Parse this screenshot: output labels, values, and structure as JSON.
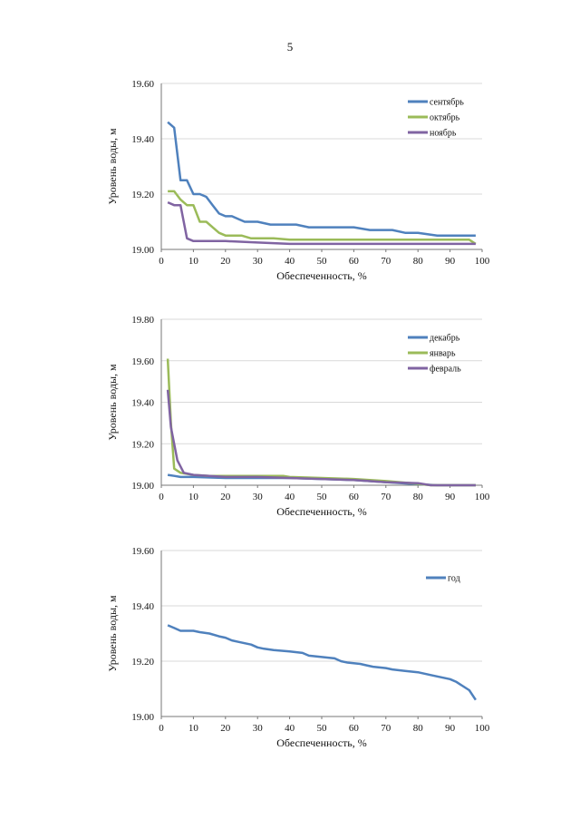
{
  "page": {
    "number": "5"
  },
  "chart_data": [
    {
      "type": "line",
      "title": "",
      "xlabel": "Обеспеченность, %",
      "ylabel": "Уровень воды, м",
      "xlim": [
        0,
        100
      ],
      "ylim": [
        19.0,
        19.6
      ],
      "xticks": [
        "0",
        "10",
        "20",
        "30",
        "40",
        "50",
        "60",
        "70",
        "80",
        "90",
        "100"
      ],
      "yticks": [
        "19.00",
        "19.20",
        "19.40",
        "19.60"
      ],
      "grid": "horizontal",
      "legend": "top-right",
      "series": [
        {
          "name": "сентябрь",
          "color": "#4f81bd",
          "points": [
            [
              2,
              19.46
            ],
            [
              4,
              19.44
            ],
            [
              6,
              19.25
            ],
            [
              8,
              19.25
            ],
            [
              10,
              19.2
            ],
            [
              12,
              19.2
            ],
            [
              14,
              19.19
            ],
            [
              16,
              19.16
            ],
            [
              18,
              19.13
            ],
            [
              20,
              19.12
            ],
            [
              22,
              19.12
            ],
            [
              24,
              19.11
            ],
            [
              26,
              19.1
            ],
            [
              30,
              19.1
            ],
            [
              34,
              19.09
            ],
            [
              38,
              19.09
            ],
            [
              42,
              19.09
            ],
            [
              46,
              19.08
            ],
            [
              55,
              19.08
            ],
            [
              60,
              19.08
            ],
            [
              65,
              19.07
            ],
            [
              72,
              19.07
            ],
            [
              76,
              19.06
            ],
            [
              80,
              19.06
            ],
            [
              86,
              19.05
            ],
            [
              90,
              19.05
            ],
            [
              94,
              19.05
            ],
            [
              98,
              19.05
            ]
          ]
        },
        {
          "name": "октябрь",
          "color": "#9bbb59",
          "points": [
            [
              2,
              19.21
            ],
            [
              4,
              19.21
            ],
            [
              6,
              19.18
            ],
            [
              8,
              19.16
            ],
            [
              10,
              19.16
            ],
            [
              12,
              19.1
            ],
            [
              14,
              19.1
            ],
            [
              16,
              19.08
            ],
            [
              18,
              19.06
            ],
            [
              20,
              19.05
            ],
            [
              25,
              19.05
            ],
            [
              28,
              19.04
            ],
            [
              35,
              19.04
            ],
            [
              40,
              19.035
            ],
            [
              50,
              19.035
            ],
            [
              70,
              19.035
            ],
            [
              90,
              19.035
            ],
            [
              96,
              19.035
            ],
            [
              98,
              19.02
            ]
          ]
        },
        {
          "name": "ноябрь",
          "color": "#8064a2",
          "points": [
            [
              2,
              19.17
            ],
            [
              4,
              19.16
            ],
            [
              6,
              19.16
            ],
            [
              8,
              19.04
            ],
            [
              10,
              19.03
            ],
            [
              20,
              19.03
            ],
            [
              30,
              19.025
            ],
            [
              40,
              19.02
            ],
            [
              60,
              19.02
            ],
            [
              80,
              19.02
            ],
            [
              98,
              19.02
            ]
          ]
        }
      ]
    },
    {
      "type": "line",
      "title": "",
      "xlabel": "Обеспеченность, %",
      "ylabel": "Уровень воды, м",
      "xlim": [
        0,
        100
      ],
      "ylim": [
        19.0,
        19.8
      ],
      "xticks": [
        "0",
        "10",
        "20",
        "30",
        "40",
        "50",
        "60",
        "70",
        "80",
        "90",
        "100"
      ],
      "yticks": [
        "19.00",
        "19.20",
        "19.40",
        "19.60",
        "19.80"
      ],
      "grid": "horizontal",
      "legend": "top-right",
      "series": [
        {
          "name": "декабрь",
          "color": "#4f81bd",
          "points": [
            [
              2,
              19.05
            ],
            [
              4,
              19.045
            ],
            [
              6,
              19.04
            ],
            [
              10,
              19.04
            ],
            [
              20,
              19.035
            ],
            [
              30,
              19.035
            ],
            [
              40,
              19.035
            ],
            [
              50,
              19.03
            ],
            [
              60,
              19.025
            ],
            [
              70,
              19.015
            ],
            [
              80,
              19.005
            ],
            [
              86,
              19.0
            ],
            [
              98,
              19.0
            ]
          ]
        },
        {
          "name": "январь",
          "color": "#9bbb59",
          "points": [
            [
              2,
              19.61
            ],
            [
              3,
              19.3
            ],
            [
              4,
              19.08
            ],
            [
              6,
              19.06
            ],
            [
              10,
              19.05
            ],
            [
              15,
              19.045
            ],
            [
              20,
              19.045
            ],
            [
              30,
              19.045
            ],
            [
              38,
              19.045
            ],
            [
              40,
              19.04
            ],
            [
              50,
              19.035
            ],
            [
              60,
              19.03
            ],
            [
              70,
              19.02
            ],
            [
              78,
              19.01
            ],
            [
              84,
              19.0
            ],
            [
              98,
              19.0
            ]
          ]
        },
        {
          "name": "февраль",
          "color": "#8064a2",
          "points": [
            [
              2,
              19.46
            ],
            [
              3,
              19.28
            ],
            [
              5,
              19.12
            ],
            [
              7,
              19.06
            ],
            [
              10,
              19.05
            ],
            [
              15,
              19.045
            ],
            [
              20,
              19.04
            ],
            [
              30,
              19.04
            ],
            [
              40,
              19.035
            ],
            [
              50,
              19.03
            ],
            [
              60,
              19.025
            ],
            [
              70,
              19.015
            ],
            [
              80,
              19.01
            ],
            [
              84,
              19.0
            ],
            [
              98,
              19.0
            ]
          ]
        }
      ]
    },
    {
      "type": "line",
      "title": "",
      "xlabel": "Обеспеченность, %",
      "ylabel": "Уровень воды, м",
      "xlim": [
        0,
        100
      ],
      "ylim": [
        19.0,
        19.6
      ],
      "xticks": [
        "0",
        "10",
        "20",
        "30",
        "40",
        "50",
        "60",
        "70",
        "80",
        "90",
        "100"
      ],
      "yticks": [
        "19.00",
        "19.20",
        "19.40",
        "19.60"
      ],
      "grid": "horizontal",
      "legend": "top-right",
      "series": [
        {
          "name": "год",
          "color": "#4f81bd",
          "points": [
            [
              2,
              19.33
            ],
            [
              4,
              19.32
            ],
            [
              6,
              19.31
            ],
            [
              10,
              19.31
            ],
            [
              12,
              19.305
            ],
            [
              15,
              19.3
            ],
            [
              18,
              19.29
            ],
            [
              20,
              19.285
            ],
            [
              22,
              19.275
            ],
            [
              24,
              19.27
            ],
            [
              26,
              19.265
            ],
            [
              28,
              19.26
            ],
            [
              30,
              19.25
            ],
            [
              32,
              19.245
            ],
            [
              35,
              19.24
            ],
            [
              40,
              19.235
            ],
            [
              44,
              19.23
            ],
            [
              46,
              19.22
            ],
            [
              50,
              19.215
            ],
            [
              54,
              19.21
            ],
            [
              56,
              19.2
            ],
            [
              58,
              19.195
            ],
            [
              62,
              19.19
            ],
            [
              64,
              19.185
            ],
            [
              66,
              19.18
            ],
            [
              70,
              19.175
            ],
            [
              72,
              19.17
            ],
            [
              76,
              19.165
            ],
            [
              80,
              19.16
            ],
            [
              84,
              19.15
            ],
            [
              86,
              19.145
            ],
            [
              88,
              19.14
            ],
            [
              90,
              19.135
            ],
            [
              92,
              19.125
            ],
            [
              94,
              19.11
            ],
            [
              96,
              19.095
            ],
            [
              98,
              19.06
            ]
          ]
        }
      ]
    }
  ]
}
